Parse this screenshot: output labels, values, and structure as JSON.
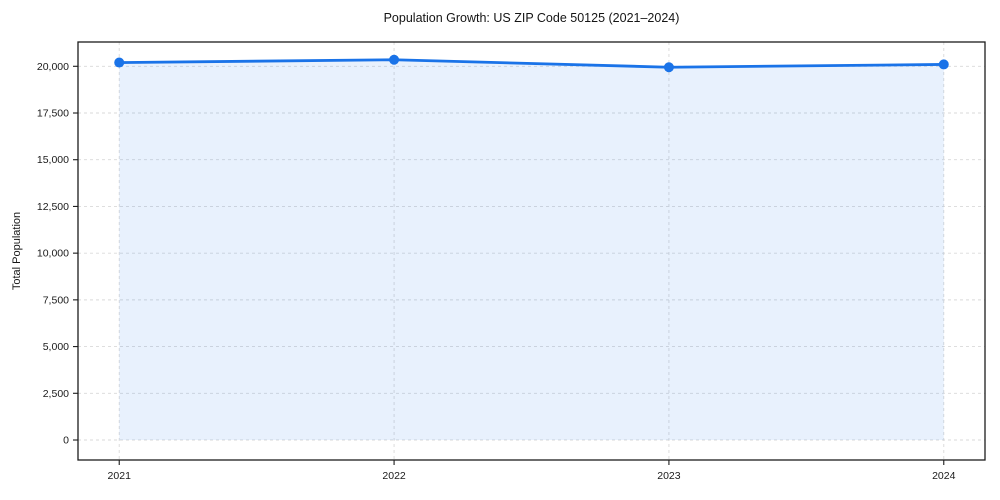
{
  "chart_data": {
    "type": "line",
    "title": "Population Growth: US ZIP Code 50125 (2021–2024)",
    "xlabel": "",
    "ylabel": "Total Population",
    "x": [
      2021,
      2022,
      2023,
      2024
    ],
    "xticklabels": [
      "2021",
      "2022",
      "2023",
      "2024"
    ],
    "series": [
      {
        "name": "Total Population",
        "values": [
          20200,
          20350,
          19950,
          20100
        ]
      }
    ],
    "yticks": [
      0,
      2500,
      5000,
      7500,
      10000,
      12500,
      15000,
      17500,
      20000
    ],
    "yticklabels": [
      "0",
      "2,500",
      "5,000",
      "7,500",
      "10,000",
      "12,500",
      "15,000",
      "17,500",
      "20,000"
    ],
    "xlim": [
      2020.85,
      2024.15
    ],
    "ylim": [
      -1070,
      21300
    ],
    "grid": {
      "visible": true,
      "style": "dashed",
      "axes": "both"
    },
    "legend": {
      "visible": false
    },
    "area_fill": true,
    "markers": true,
    "colors": {
      "line": "#1a73e8",
      "marker": "#1a73e8",
      "area_fill": "rgba(26,115,232,0.10)",
      "grid": "#d9d9d9",
      "spine": "#1c1c1c",
      "text": "#1a1a1a",
      "background": "#ffffff"
    }
  }
}
